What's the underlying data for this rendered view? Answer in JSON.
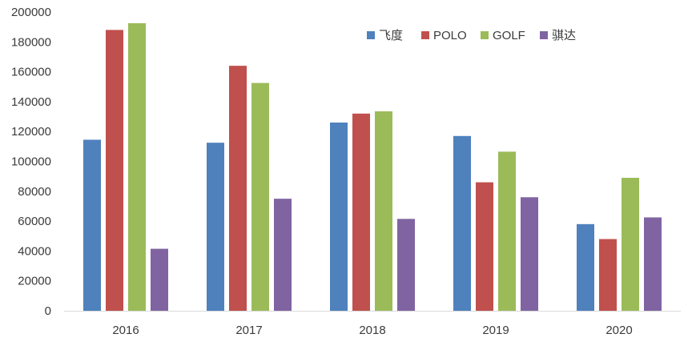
{
  "chart_data": {
    "type": "bar",
    "categories": [
      "2016",
      "2017",
      "2018",
      "2019",
      "2020"
    ],
    "series": [
      {
        "name": "飞度",
        "color": "#4F81BD",
        "values": [
          114500,
          112500,
          126000,
          117000,
          58000
        ]
      },
      {
        "name": "POLO",
        "color": "#C0504D",
        "values": [
          188000,
          164000,
          132000,
          86000,
          48000
        ]
      },
      {
        "name": "GOLF",
        "color": "#9BBB59",
        "values": [
          192500,
          152500,
          133500,
          106500,
          89000
        ]
      },
      {
        "name": "骐达",
        "color": "#8064A2",
        "values": [
          41500,
          75000,
          61500,
          76000,
          62500
        ]
      }
    ],
    "ylim": [
      0,
      200000
    ],
    "yticks": [
      0,
      20000,
      40000,
      60000,
      80000,
      100000,
      120000,
      140000,
      160000,
      180000,
      200000
    ],
    "grid": false,
    "legend": "top-center"
  }
}
